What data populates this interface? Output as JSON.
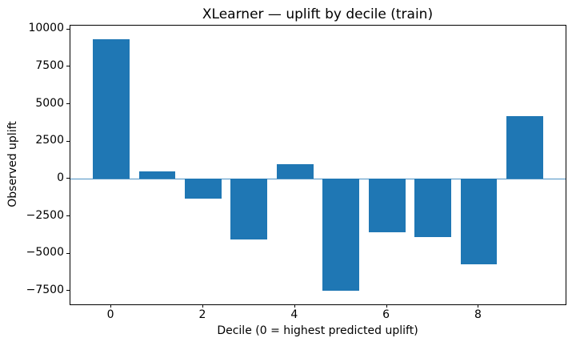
{
  "chart_data": {
    "type": "bar",
    "title": "XLearner — uplift by decile (train)",
    "xlabel": "Decile (0 = highest predicted uplift)",
    "ylabel": "Observed uplift",
    "categories": [
      0,
      1,
      2,
      3,
      4,
      5,
      6,
      7,
      8,
      9
    ],
    "values": [
      9360,
      500,
      -1320,
      -4050,
      1000,
      -7500,
      -3570,
      -3870,
      -5690,
      4190
    ],
    "bar_width": 0.8,
    "bar_color": "#1f77b4",
    "zero_line_color": "#1f77b4",
    "xticks": [
      0,
      2,
      4,
      6,
      8
    ],
    "xtick_labels": [
      "0",
      "2",
      "4",
      "6",
      "8"
    ],
    "yticks": [
      10000,
      7500,
      5000,
      2500,
      0,
      -2500,
      -5000,
      -7500
    ],
    "ytick_labels": [
      "10000",
      "7500",
      "5000",
      "2500",
      "0",
      "−2500",
      "−5000",
      "−7500"
    ],
    "xlim": [
      -0.89,
      9.89
    ],
    "ylim": [
      -8384,
      10256
    ],
    "grid": false,
    "legend_position": "none"
  }
}
